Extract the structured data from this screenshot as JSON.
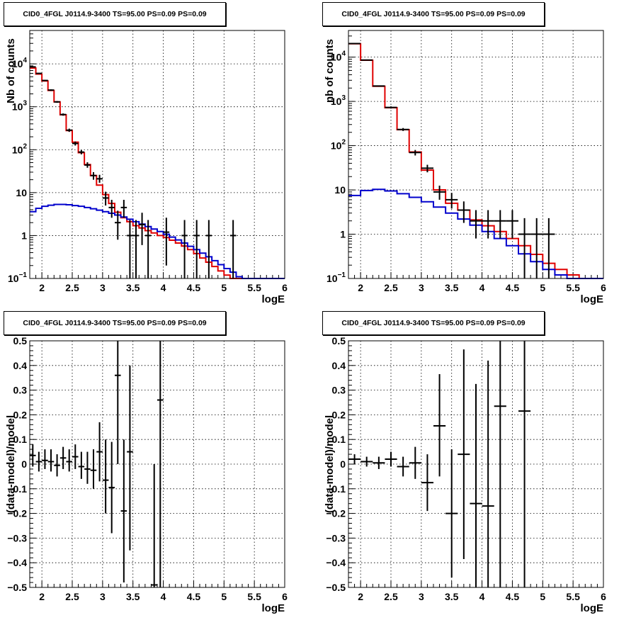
{
  "chart_data": [
    {
      "type": "line",
      "title": "CID0_4FGL J0114.9-3400 TS=95.00 PS=0.09 PS=0.09",
      "xlabel": "logE",
      "ylabel": "Nb of counts",
      "xlim": [
        1.8,
        6.0
      ],
      "ylim": [
        0.1,
        60000
      ],
      "yscale": "log",
      "grid": true,
      "x_ticks": [
        "2",
        "2.5",
        "3",
        "3.5",
        "4",
        "4.5",
        "5",
        "5.5",
        "6"
      ],
      "y_ticks": [
        {
          "v": 0.1,
          "base": "10",
          "exp": "−1"
        },
        {
          "v": 1,
          "text": "1"
        },
        {
          "v": 10,
          "text": "10"
        },
        {
          "v": 100,
          "base": "10",
          "exp": "2"
        },
        {
          "v": 1000,
          "base": "10",
          "exp": "3"
        },
        {
          "v": 10000,
          "base": "10",
          "exp": "4"
        }
      ],
      "series": [
        {
          "kind": "step",
          "color": "#e00000",
          "bin_width": 0.1,
          "x_start": 1.8,
          "values": [
            8000,
            5800,
            4000,
            2400,
            1300,
            650,
            280,
            150,
            85,
            45,
            25,
            15,
            9,
            5.6,
            3.5,
            2.6,
            2.1,
            1.7,
            1.5,
            1.3,
            1.15,
            1.0,
            0.9,
            0.78,
            0.67,
            0.57,
            0.47,
            0.38,
            0.3,
            0.24,
            0.19,
            0.15,
            0.12,
            0.1,
            0.1,
            0.1,
            0.1,
            0.1,
            0.1,
            0.1,
            0.1,
            0.1
          ]
        },
        {
          "kind": "step",
          "color": "#0000cc",
          "bin_width": 0.1,
          "x_start": 1.8,
          "values": [
            3.6,
            4.3,
            4.8,
            5.1,
            5.3,
            5.3,
            5.2,
            5.0,
            4.8,
            4.5,
            4.2,
            3.9,
            3.6,
            3.3,
            3.0,
            2.7,
            2.4,
            2.1,
            1.85,
            1.62,
            1.42,
            1.24,
            1.07,
            0.92,
            0.79,
            0.67,
            0.56,
            0.47,
            0.39,
            0.32,
            0.26,
            0.21,
            0.17,
            0.14,
            0.11,
            0.1,
            0.1,
            0.1,
            0.1,
            0.1,
            0.1,
            0.1
          ]
        },
        {
          "kind": "errorbar",
          "color": "#000000",
          "xerr": 0.05,
          "points": [
            {
              "x": 1.85,
              "y": 8500,
              "lo": 8300,
              "hi": 8700
            },
            {
              "x": 1.95,
              "y": 6000,
              "lo": 5850,
              "hi": 6150
            },
            {
              "x": 2.05,
              "y": 4100,
              "lo": 3980,
              "hi": 4220
            },
            {
              "x": 2.15,
              "y": 2450,
              "lo": 2350,
              "hi": 2550
            },
            {
              "x": 2.25,
              "y": 1300,
              "lo": 1240,
              "hi": 1360
            },
            {
              "x": 2.35,
              "y": 660,
              "lo": 620,
              "hi": 700
            },
            {
              "x": 2.45,
              "y": 285,
              "lo": 260,
              "hi": 310
            },
            {
              "x": 2.55,
              "y": 140,
              "lo": 125,
              "hi": 155
            },
            {
              "x": 2.65,
              "y": 88,
              "lo": 78,
              "hi": 98
            },
            {
              "x": 2.75,
              "y": 44,
              "lo": 38,
              "hi": 51
            },
            {
              "x": 2.85,
              "y": 25,
              "lo": 20,
              "hi": 30
            },
            {
              "x": 2.95,
              "y": 21,
              "lo": 17,
              "hi": 26
            },
            {
              "x": 3.05,
              "y": 7.5,
              "lo": 5,
              "hi": 10.5
            },
            {
              "x": 3.15,
              "y": 4.5,
              "lo": 2.6,
              "hi": 6.8
            },
            {
              "x": 3.25,
              "y": 2.0,
              "lo": 0.8,
              "hi": 3.8
            },
            {
              "x": 3.35,
              "y": 4.5,
              "lo": 2.6,
              "hi": 6.8
            },
            {
              "x": 3.45,
              "y": 1.0,
              "lo": 0.1,
              "hi": 2.3
            },
            {
              "x": 3.55,
              "y": 1.0,
              "lo": 0.1,
              "hi": 2.3
            },
            {
              "x": 3.65,
              "y": 1.8,
              "lo": 0.6,
              "hi": 3.4
            },
            {
              "x": 3.75,
              "y": 1.0,
              "lo": 0.1,
              "hi": 2.3
            },
            {
              "x": 4.05,
              "y": 1.2,
              "lo": 0.2,
              "hi": 2.6
            },
            {
              "x": 4.35,
              "y": 1.0,
              "lo": 0.1,
              "hi": 2.3
            },
            {
              "x": 4.55,
              "y": 1.0,
              "lo": 0.1,
              "hi": 2.3
            },
            {
              "x": 4.75,
              "y": 1.0,
              "lo": 0.1,
              "hi": 2.3
            },
            {
              "x": 5.15,
              "y": 1.0,
              "lo": 0.1,
              "hi": 2.3
            }
          ]
        }
      ]
    },
    {
      "type": "line",
      "title": "CID0_4FGL J0114.9-3400 TS=95.00 PS=0.09 PS=0.09",
      "xlabel": "logE",
      "ylabel": "nb of counts",
      "xlim": [
        1.8,
        6.0
      ],
      "ylim": [
        0.1,
        40000
      ],
      "yscale": "log",
      "grid": true,
      "x_ticks": [
        "2",
        "2.5",
        "3",
        "3.5",
        "4",
        "4.5",
        "5",
        "5.5",
        "6"
      ],
      "y_ticks": [
        {
          "v": 0.1,
          "base": "10",
          "exp": "−1"
        },
        {
          "v": 1,
          "text": "1"
        },
        {
          "v": 10,
          "text": "10"
        },
        {
          "v": 100,
          "base": "10",
          "exp": "2"
        },
        {
          "v": 1000,
          "base": "10",
          "exp": "3"
        },
        {
          "v": 10000,
          "base": "10",
          "exp": "4"
        }
      ],
      "series": [
        {
          "kind": "step",
          "color": "#e00000",
          "bin_width": 0.2,
          "x_start": 1.8,
          "values": [
            20000,
            8500,
            2200,
            720,
            230,
            72,
            28,
            10,
            5,
            3.5,
            2.1,
            1.55,
            1.15,
            0.8,
            0.55,
            0.35,
            0.22,
            0.16,
            0.12,
            0.1,
            0.1
          ]
        },
        {
          "kind": "step",
          "color": "#0000cc",
          "bin_width": 0.2,
          "x_start": 1.8,
          "values": [
            7.5,
            9.7,
            10.3,
            9.5,
            8.2,
            6.8,
            5.4,
            4.1,
            3.0,
            2.2,
            1.6,
            1.15,
            0.8,
            0.55,
            0.36,
            0.24,
            0.16,
            0.12,
            0.1,
            0.1,
            0.1
          ]
        },
        {
          "kind": "errorbar",
          "color": "#000000",
          "xerr": 0.1,
          "points": [
            {
              "x": 1.9,
              "y": 20200,
              "lo": 20000,
              "hi": 20400
            },
            {
              "x": 2.1,
              "y": 8600,
              "lo": 8450,
              "hi": 8750
            },
            {
              "x": 2.3,
              "y": 2230,
              "lo": 2160,
              "hi": 2300
            },
            {
              "x": 2.5,
              "y": 730,
              "lo": 690,
              "hi": 770
            },
            {
              "x": 2.7,
              "y": 232,
              "lo": 215,
              "hi": 250
            },
            {
              "x": 2.9,
              "y": 70,
              "lo": 60,
              "hi": 80
            },
            {
              "x": 3.1,
              "y": 31,
              "lo": 25,
              "hi": 37
            },
            {
              "x": 3.3,
              "y": 9,
              "lo": 6,
              "hi": 12.5
            },
            {
              "x": 3.5,
              "y": 6,
              "lo": 3.8,
              "hi": 8.6
            },
            {
              "x": 3.7,
              "y": 3.5,
              "lo": 1.8,
              "hi": 5.5
            },
            {
              "x": 3.9,
              "y": 2.0,
              "lo": 0.8,
              "hi": 3.5
            },
            {
              "x": 4.1,
              "y": 2.0,
              "lo": 0.8,
              "hi": 3.5
            },
            {
              "x": 4.3,
              "y": 2.0,
              "lo": 0.8,
              "hi": 3.5
            },
            {
              "x": 4.5,
              "y": 2.0,
              "lo": 0.8,
              "hi": 3.5
            },
            {
              "x": 4.7,
              "y": 1.0,
              "lo": 0.1,
              "hi": 2.3
            },
            {
              "x": 4.9,
              "y": 1.0,
              "lo": 0.1,
              "hi": 2.3
            },
            {
              "x": 5.1,
              "y": 1.0,
              "lo": 0.1,
              "hi": 2.3
            }
          ]
        }
      ]
    },
    {
      "type": "scatter",
      "title": "CID0_4FGL J0114.9-3400 TS=95.00 PS=0.09 PS=0.09",
      "xlabel": "logE",
      "ylabel": "(data-model)/model",
      "xlim": [
        1.8,
        6.0
      ],
      "ylim": [
        -0.5,
        0.5
      ],
      "yscale": "linear",
      "grid": true,
      "x_ticks": [
        "2",
        "2.5",
        "3",
        "3.5",
        "4",
        "4.5",
        "5",
        "5.5",
        "6"
      ],
      "y_ticks": [
        {
          "v": 0.5,
          "text": "0.5"
        },
        {
          "v": 0.4,
          "text": "0.4"
        },
        {
          "v": 0.3,
          "text": "0.3"
        },
        {
          "v": 0.2,
          "text": "0.2"
        },
        {
          "v": 0.1,
          "text": "0.1"
        },
        {
          "v": 0,
          "text": "0"
        },
        {
          "v": -0.1,
          "text": "−0.1"
        },
        {
          "v": -0.2,
          "text": "−0.2"
        },
        {
          "v": -0.3,
          "text": "−0.3"
        },
        {
          "v": -0.4,
          "text": "−0.4"
        },
        {
          "v": -0.5,
          "text": "−0.5"
        }
      ],
      "series": [
        {
          "kind": "errorbar",
          "color": "#000000",
          "xerr": 0.05,
          "points": [
            {
              "x": 1.85,
              "y": 0.035,
              "lo": -0.01,
              "hi": 0.08
            },
            {
              "x": 1.95,
              "y": 0.01,
              "lo": -0.03,
              "hi": 0.05
            },
            {
              "x": 2.05,
              "y": 0.015,
              "lo": -0.02,
              "hi": 0.06
            },
            {
              "x": 2.15,
              "y": 0.01,
              "lo": -0.03,
              "hi": 0.06
            },
            {
              "x": 2.25,
              "y": -0.005,
              "lo": -0.05,
              "hi": 0.04
            },
            {
              "x": 2.35,
              "y": 0.025,
              "lo": -0.02,
              "hi": 0.07
            },
            {
              "x": 2.45,
              "y": 0.01,
              "lo": -0.03,
              "hi": 0.06
            },
            {
              "x": 2.55,
              "y": 0.03,
              "lo": -0.02,
              "hi": 0.08
            },
            {
              "x": 2.65,
              "y": -0.01,
              "lo": -0.06,
              "hi": 0.05
            },
            {
              "x": 2.75,
              "y": -0.02,
              "lo": -0.08,
              "hi": 0.05
            },
            {
              "x": 2.85,
              "y": -0.025,
              "lo": -0.1,
              "hi": 0.06
            },
            {
              "x": 2.95,
              "y": 0.05,
              "lo": -0.07,
              "hi": 0.17
            },
            {
              "x": 3.05,
              "y": -0.065,
              "lo": -0.2,
              "hi": 0.1
            },
            {
              "x": 3.15,
              "y": -0.095,
              "lo": -0.28,
              "hi": 0.09
            },
            {
              "x": 3.25,
              "y": 0.36,
              "lo": 0.0,
              "hi": 0.5
            },
            {
              "x": 3.35,
              "y": -0.19,
              "lo": -0.48,
              "hi": 0.1
            },
            {
              "x": 3.45,
              "y": 0.05,
              "lo": -0.35,
              "hi": 0.4
            },
            {
              "x": 3.85,
              "y": -0.49,
              "lo": -0.5,
              "hi": 0.0
            },
            {
              "x": 3.95,
              "y": 0.26,
              "lo": -0.5,
              "hi": 0.5
            }
          ]
        }
      ]
    },
    {
      "type": "scatter",
      "title": "CID0_4FGL J0114.9-3400 TS=95.00 PS=0.09 PS=0.09",
      "xlabel": "logE",
      "ylabel": "(data-model)/model",
      "xlim": [
        1.8,
        6.0
      ],
      "ylim": [
        -0.5,
        0.5
      ],
      "yscale": "linear",
      "grid": true,
      "x_ticks": [
        "2",
        "2.5",
        "3",
        "3.5",
        "4",
        "4.5",
        "5",
        "5.5",
        "6"
      ],
      "y_ticks": [
        {
          "v": 0.5,
          "text": "0.5"
        },
        {
          "v": 0.4,
          "text": "0.4"
        },
        {
          "v": 0.3,
          "text": "0.3"
        },
        {
          "v": 0.2,
          "text": "0.2"
        },
        {
          "v": 0.1,
          "text": "0.1"
        },
        {
          "v": 0,
          "text": "0"
        },
        {
          "v": -0.1,
          "text": "−0.1"
        },
        {
          "v": -0.2,
          "text": "−0.2"
        },
        {
          "v": -0.3,
          "text": "−0.3"
        },
        {
          "v": -0.4,
          "text": "−0.4"
        },
        {
          "v": -0.5,
          "text": "−0.5"
        }
      ],
      "series": [
        {
          "kind": "errorbar",
          "color": "#000000",
          "xerr": 0.1,
          "points": [
            {
              "x": 1.9,
              "y": 0.02,
              "lo": 0.0,
              "hi": 0.04
            },
            {
              "x": 2.1,
              "y": 0.01,
              "lo": -0.01,
              "hi": 0.03
            },
            {
              "x": 2.3,
              "y": 0.005,
              "lo": -0.02,
              "hi": 0.03
            },
            {
              "x": 2.5,
              "y": 0.02,
              "lo": -0.01,
              "hi": 0.05
            },
            {
              "x": 2.7,
              "y": -0.01,
              "lo": -0.05,
              "hi": 0.03
            },
            {
              "x": 2.9,
              "y": 0.005,
              "lo": -0.06,
              "hi": 0.07
            },
            {
              "x": 3.1,
              "y": -0.075,
              "lo": -0.19,
              "hi": 0.04
            },
            {
              "x": 3.3,
              "y": 0.155,
              "lo": -0.05,
              "hi": 0.365
            },
            {
              "x": 3.5,
              "y": -0.2,
              "lo": -0.46,
              "hi": 0.06
            },
            {
              "x": 3.7,
              "y": 0.04,
              "lo": -0.385,
              "hi": 0.465
            },
            {
              "x": 3.9,
              "y": -0.16,
              "lo": -0.5,
              "hi": 0.325
            },
            {
              "x": 4.1,
              "y": -0.17,
              "lo": -0.5,
              "hi": 0.42
            },
            {
              "x": 4.3,
              "y": 0.235,
              "lo": -0.5,
              "hi": 0.5
            },
            {
              "x": 4.7,
              "y": 0.215,
              "lo": -0.5,
              "hi": 0.5
            }
          ]
        }
      ]
    }
  ]
}
